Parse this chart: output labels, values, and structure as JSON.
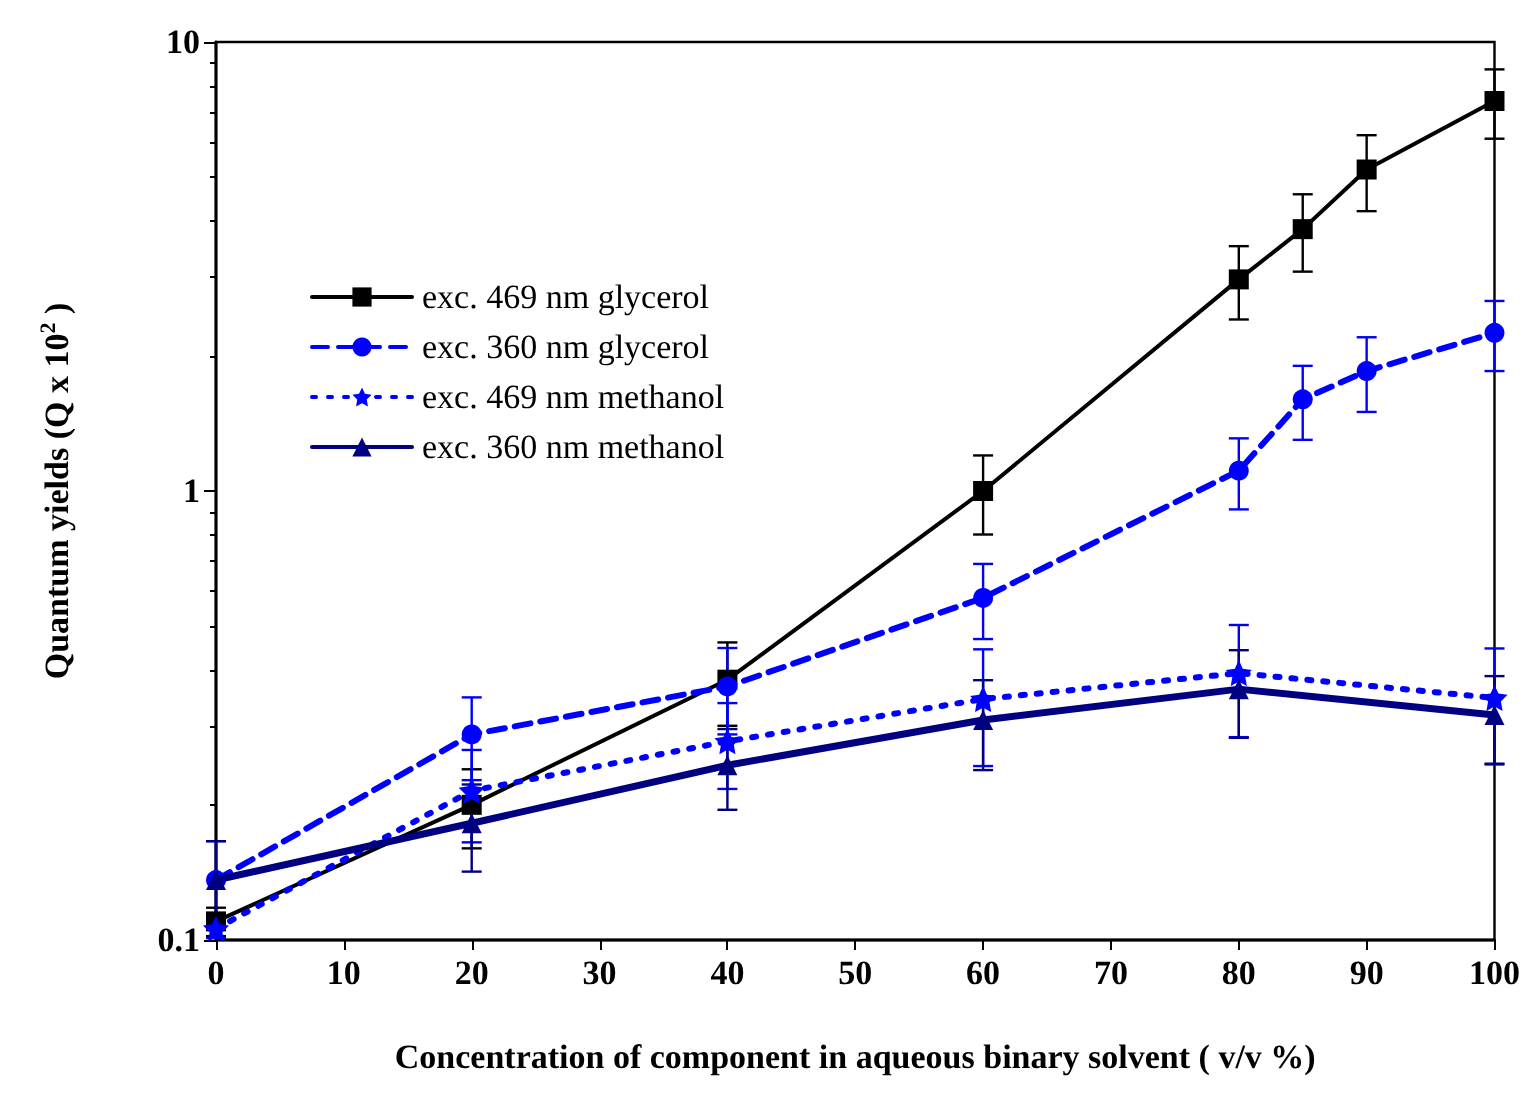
{
  "chart_data": {
    "type": "line",
    "xlabel": "Concentration of component in aqueous binary solvent ( v/v %)",
    "ylabel": "Quantum yields (Q x 10$^{2}$ )",
    "xlim": [
      0,
      100
    ],
    "xticks": [
      0,
      10,
      20,
      30,
      40,
      50,
      60,
      70,
      80,
      90,
      100
    ],
    "ylim": [
      0.1,
      10
    ],
    "yticks": [
      0.1,
      1,
      10
    ],
    "log": "y",
    "grid": false,
    "legend": "top left",
    "series": [
      {
        "name": "exc. 469 nm glycerol",
        "color": "#000000",
        "marker": "square",
        "line_style": "solid",
        "x": [
          0,
          20,
          40,
          60,
          80,
          85,
          90,
          100
        ],
        "values": [
          0.11,
          0.2,
          0.38,
          1.0,
          2.96,
          3.83,
          5.2,
          7.39
        ],
        "errors": [
          0.008,
          0.04,
          0.08,
          0.2,
          0.55,
          0.75,
          1.0,
          1.3
        ]
      },
      {
        "name": "exc. 360 nm glycerol",
        "color": "#0000ff",
        "marker": "circle",
        "line_style": "dashed",
        "x": [
          0,
          20,
          40,
          60,
          80,
          85,
          90,
          100
        ],
        "values": [
          0.136,
          0.287,
          0.367,
          0.578,
          1.11,
          1.6,
          1.85,
          2.25
        ],
        "errors": [
          0.03,
          0.06,
          0.08,
          0.11,
          0.2,
          0.3,
          0.35,
          0.4
        ]
      },
      {
        "name": "exc. 469 nm methanol",
        "color": "#0000ff",
        "marker": "star",
        "line_style": "dotted",
        "x": [
          0,
          20,
          40,
          60,
          80,
          100
        ],
        "values": [
          0.106,
          0.215,
          0.277,
          0.344,
          0.393,
          0.346
        ],
        "errors": [
          0.005,
          0.05,
          0.06,
          0.1,
          0.11,
          0.1
        ]
      },
      {
        "name": "exc. 360 nm methanol",
        "color": "#000080",
        "marker": "triangle",
        "line_style": "solid",
        "x": [
          0,
          20,
          40,
          60,
          80,
          100
        ],
        "values": [
          0.136,
          0.182,
          0.245,
          0.309,
          0.362,
          0.317
        ],
        "errors": [
          0.03,
          0.04,
          0.05,
          0.07,
          0.08,
          0.07
        ]
      }
    ]
  }
}
